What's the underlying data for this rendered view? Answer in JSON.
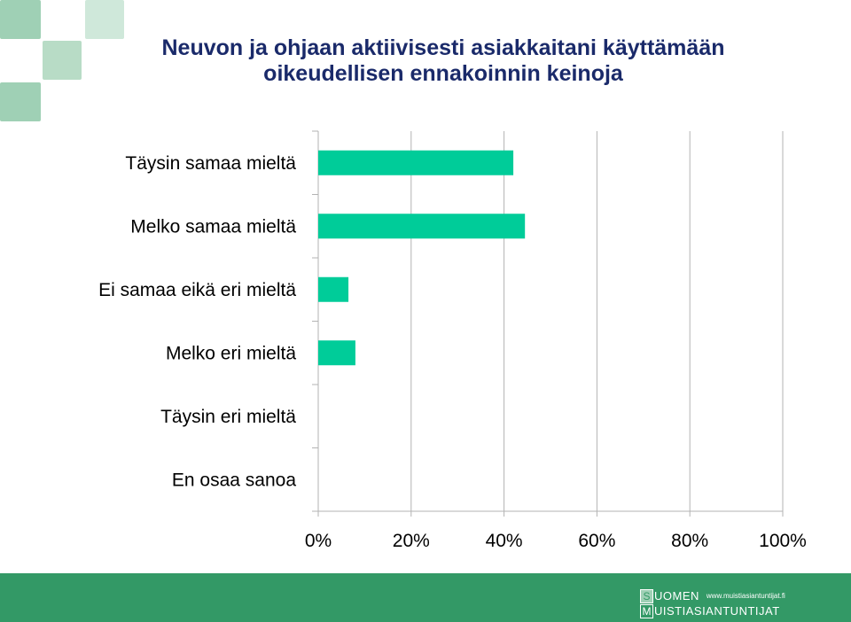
{
  "title_lines": [
    "Neuvon ja ohjaan aktiivisesti asiakkaitani käyttämään",
    "oikeudellisen ennakoinnin keinoja"
  ],
  "colors": {
    "bar": "#00cc99",
    "title": "#1a2a6a",
    "footer": "#339966",
    "grid": "#b3b3b3"
  },
  "chart_data": {
    "type": "bar",
    "orientation": "horizontal",
    "categories": [
      "Täysin samaa mieltä",
      "Melko samaa mieltä",
      "Ei samaa eikä eri mieltä",
      "Melko eri mieltä",
      "Täysin eri mieltä",
      "En osaa sanoa"
    ],
    "values": [
      42,
      44.5,
      6.5,
      8,
      0,
      0
    ],
    "xlim": [
      0,
      100
    ],
    "xticks": [
      "0%",
      "20%",
      "40%",
      "60%",
      "80%",
      "100%"
    ],
    "grid": true
  },
  "footer": {
    "logo_top_letter": "S",
    "logo_top_word": "UOMEN",
    "logo_url": "www.muistiasiantuntijat.fi",
    "logo_bottom_letter": "M",
    "logo_bottom_word": "UISTIASIANTUNTIJAT"
  }
}
